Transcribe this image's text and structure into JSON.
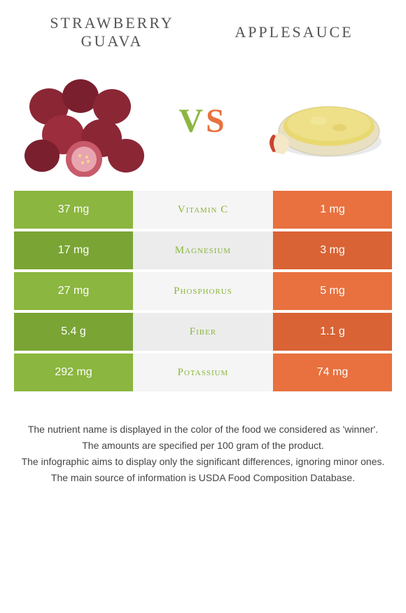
{
  "header": {
    "left_title_line1": "STRAWBERRY",
    "left_title_line2": "GUAVA",
    "right_title": "APPLESAUCE"
  },
  "vs": {
    "v": "V",
    "s": "S"
  },
  "colors": {
    "left_food": "#8bb63f",
    "right_food": "#e8713f",
    "left_dark": "#7aa535",
    "right_dark": "#d96335",
    "mid_bg": "#f5f5f5",
    "mid_alt": "#ececec"
  },
  "nutrients": [
    {
      "name": "Vitamin C",
      "left": "37 mg",
      "right": "1 mg",
      "winner": "left"
    },
    {
      "name": "Magnesium",
      "left": "17 mg",
      "right": "3 mg",
      "winner": "left"
    },
    {
      "name": "Phosphorus",
      "left": "27 mg",
      "right": "5 mg",
      "winner": "left"
    },
    {
      "name": "Fiber",
      "left": "5.4 g",
      "right": "1.1 g",
      "winner": "left"
    },
    {
      "name": "Potassium",
      "left": "292 mg",
      "right": "74 mg",
      "winner": "left"
    }
  ],
  "footer": {
    "line1": "The nutrient name is displayed in the color of the food we considered as 'winner'.",
    "line2": "The amounts are specified per 100 gram of the product.",
    "line3": "The infographic aims to display only the significant differences, ignoring minor ones.",
    "line4": "The main source of information is USDA Food Composition Database."
  }
}
